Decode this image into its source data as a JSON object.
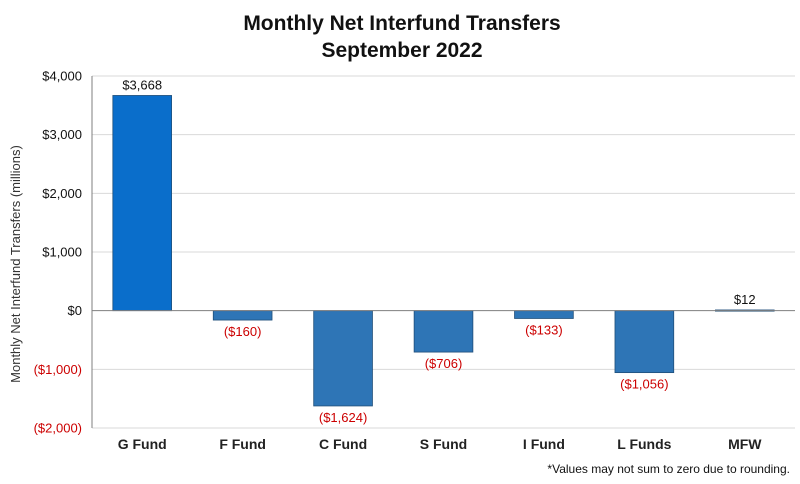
{
  "chart_data": {
    "type": "bar",
    "title": [
      "Monthly Net Interfund Transfers",
      "September 2022"
    ],
    "ylabel": "Monthly Net Interfund Transfers (millions)",
    "xlabel": "",
    "ylim": [
      -2000,
      4000
    ],
    "grid": true,
    "legend": "none",
    "y_ticks": [
      4000,
      3000,
      2000,
      1000,
      0,
      -1000,
      -2000
    ],
    "y_tick_labels": [
      "$4,000",
      "$3,000",
      "$2,000",
      "$1,000",
      "$0",
      "($1,000)",
      "($2,000)"
    ],
    "categories": [
      "G Fund",
      "F Fund",
      "C Fund",
      "S Fund",
      "I Fund",
      "L Funds",
      "MFW"
    ],
    "values": [
      3668,
      -160,
      -1624,
      -706,
      -133,
      -1056,
      12
    ],
    "data_labels": [
      "$3,668",
      "($160)",
      "($1,624)",
      "($706)",
      "($133)",
      "($1,056)",
      "$12"
    ],
    "bar_colors": [
      "#0a6ecb",
      "#2e75b6",
      "#2e75b6",
      "#2e75b6",
      "#2e75b6",
      "#2e75b6",
      "#2e75b6"
    ],
    "negative_label_color": "#cc0000",
    "positive_label_color": "#111111",
    "footnote": "*Values may not sum to zero due to rounding."
  }
}
